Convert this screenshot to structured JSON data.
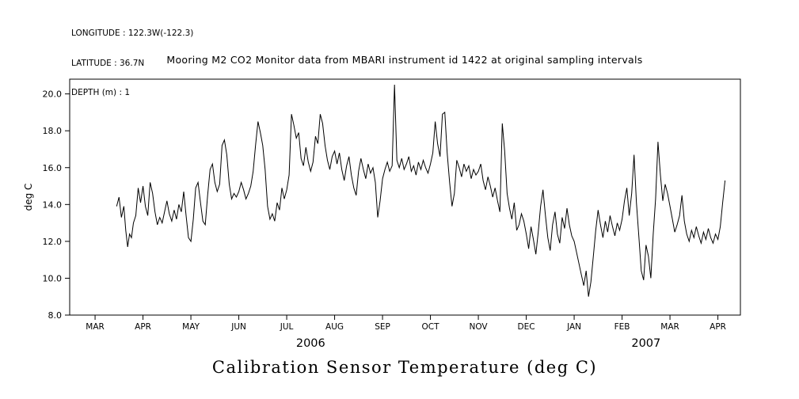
{
  "header": {
    "longitude_label": "LONGITUDE : 122.3W(-122.3)",
    "latitude_label": "LATITUDE : 36.7N",
    "depth_label": "DEPTH (m) : 1"
  },
  "title": "Mooring M2 CO2 Monitor data from MBARI instrument id 1422 at original sampling intervals",
  "footer_title": "Calibration Sensor Temperature (deg C)",
  "chart_data": {
    "type": "line",
    "title": "Mooring M2 CO2 Monitor data from MBARI instrument id 1422 at original sampling intervals",
    "xlabel": "",
    "ylabel": "deg C",
    "units": "deg C",
    "line_color": "#000000",
    "grid": false,
    "legend": "none",
    "ylim": [
      8.0,
      20.8
    ],
    "xlim_months": [
      -0.53,
      13.47
    ],
    "y_ticks": [
      8.0,
      10.0,
      12.0,
      14.0,
      16.0,
      18.0,
      20.0
    ],
    "y_tick_labels": [
      "8.0",
      "10.0",
      "12.0",
      "14.0",
      "16.0",
      "18.0",
      "20.0"
    ],
    "x_tick_labels": [
      "MAR",
      "APR",
      "MAY",
      "JUN",
      "JUL",
      "AUG",
      "SEP",
      "OCT",
      "NOV",
      "DEC",
      "JAN",
      "FEB",
      "MAR",
      "APR"
    ],
    "year_labels": [
      {
        "label": "2006",
        "month_x": 4.5
      },
      {
        "label": "2007",
        "month_x": 11.5
      }
    ],
    "series": [
      {
        "name": "Calibration Sensor Temperature",
        "points": [
          [
            0.45,
            13.9
          ],
          [
            0.5,
            14.4
          ],
          [
            0.55,
            13.3
          ],
          [
            0.6,
            13.9
          ],
          [
            0.64,
            12.6
          ],
          [
            0.68,
            11.7
          ],
          [
            0.72,
            12.4
          ],
          [
            0.76,
            12.2
          ],
          [
            0.8,
            13.0
          ],
          [
            0.85,
            13.4
          ],
          [
            0.9,
            14.9
          ],
          [
            0.95,
            14.1
          ],
          [
            1.0,
            15.0
          ],
          [
            1.05,
            13.9
          ],
          [
            1.1,
            13.4
          ],
          [
            1.15,
            15.2
          ],
          [
            1.2,
            14.6
          ],
          [
            1.25,
            13.6
          ],
          [
            1.3,
            12.9
          ],
          [
            1.35,
            13.3
          ],
          [
            1.4,
            13.0
          ],
          [
            1.45,
            13.6
          ],
          [
            1.5,
            14.2
          ],
          [
            1.55,
            13.5
          ],
          [
            1.6,
            13.1
          ],
          [
            1.65,
            13.7
          ],
          [
            1.7,
            13.2
          ],
          [
            1.75,
            14.0
          ],
          [
            1.8,
            13.6
          ],
          [
            1.85,
            14.7
          ],
          [
            1.9,
            13.4
          ],
          [
            1.95,
            12.2
          ],
          [
            2.0,
            12.0
          ],
          [
            2.05,
            13.2
          ],
          [
            2.1,
            14.9
          ],
          [
            2.15,
            15.2
          ],
          [
            2.2,
            14.1
          ],
          [
            2.25,
            13.1
          ],
          [
            2.3,
            12.9
          ],
          [
            2.35,
            14.5
          ],
          [
            2.4,
            15.9
          ],
          [
            2.45,
            16.2
          ],
          [
            2.5,
            15.2
          ],
          [
            2.55,
            14.7
          ],
          [
            2.6,
            15.1
          ],
          [
            2.65,
            17.2
          ],
          [
            2.7,
            17.5
          ],
          [
            2.75,
            16.7
          ],
          [
            2.8,
            15.1
          ],
          [
            2.85,
            14.3
          ],
          [
            2.9,
            14.6
          ],
          [
            2.95,
            14.4
          ],
          [
            3.0,
            14.7
          ],
          [
            3.05,
            15.2
          ],
          [
            3.1,
            14.8
          ],
          [
            3.15,
            14.3
          ],
          [
            3.2,
            14.6
          ],
          [
            3.25,
            15.0
          ],
          [
            3.3,
            15.8
          ],
          [
            3.35,
            17.2
          ],
          [
            3.4,
            18.5
          ],
          [
            3.45,
            17.9
          ],
          [
            3.5,
            17.2
          ],
          [
            3.55,
            15.9
          ],
          [
            3.6,
            13.9
          ],
          [
            3.65,
            13.2
          ],
          [
            3.7,
            13.5
          ],
          [
            3.75,
            13.1
          ],
          [
            3.8,
            14.1
          ],
          [
            3.85,
            13.7
          ],
          [
            3.9,
            14.9
          ],
          [
            3.95,
            14.3
          ],
          [
            4.0,
            14.8
          ],
          [
            4.05,
            15.6
          ],
          [
            4.1,
            18.9
          ],
          [
            4.15,
            18.3
          ],
          [
            4.2,
            17.6
          ],
          [
            4.25,
            17.9
          ],
          [
            4.3,
            16.5
          ],
          [
            4.35,
            16.1
          ],
          [
            4.4,
            17.1
          ],
          [
            4.45,
            16.3
          ],
          [
            4.5,
            15.8
          ],
          [
            4.55,
            16.3
          ],
          [
            4.6,
            17.7
          ],
          [
            4.65,
            17.3
          ],
          [
            4.7,
            18.9
          ],
          [
            4.75,
            18.4
          ],
          [
            4.8,
            17.2
          ],
          [
            4.85,
            16.4
          ],
          [
            4.9,
            15.9
          ],
          [
            4.95,
            16.6
          ],
          [
            5.0,
            16.9
          ],
          [
            5.05,
            16.2
          ],
          [
            5.1,
            16.8
          ],
          [
            5.15,
            15.9
          ],
          [
            5.2,
            15.3
          ],
          [
            5.25,
            16.1
          ],
          [
            5.3,
            16.6
          ],
          [
            5.35,
            15.6
          ],
          [
            5.4,
            14.9
          ],
          [
            5.45,
            14.5
          ],
          [
            5.5,
            15.8
          ],
          [
            5.55,
            16.5
          ],
          [
            5.6,
            15.9
          ],
          [
            5.65,
            15.4
          ],
          [
            5.7,
            16.2
          ],
          [
            5.75,
            15.7
          ],
          [
            5.8,
            16.0
          ],
          [
            5.85,
            15.2
          ],
          [
            5.9,
            13.3
          ],
          [
            5.95,
            14.2
          ],
          [
            6.0,
            15.4
          ],
          [
            6.05,
            15.9
          ],
          [
            6.1,
            16.3
          ],
          [
            6.15,
            15.8
          ],
          [
            6.2,
            16.1
          ],
          [
            6.25,
            20.5
          ],
          [
            6.3,
            16.4
          ],
          [
            6.35,
            16.0
          ],
          [
            6.4,
            16.5
          ],
          [
            6.45,
            15.9
          ],
          [
            6.5,
            16.2
          ],
          [
            6.55,
            16.6
          ],
          [
            6.6,
            15.8
          ],
          [
            6.65,
            16.1
          ],
          [
            6.7,
            15.6
          ],
          [
            6.75,
            16.3
          ],
          [
            6.8,
            15.9
          ],
          [
            6.85,
            16.4
          ],
          [
            6.9,
            16.0
          ],
          [
            6.95,
            15.7
          ],
          [
            7.0,
            16.2
          ],
          [
            7.05,
            16.8
          ],
          [
            7.1,
            18.5
          ],
          [
            7.15,
            17.3
          ],
          [
            7.2,
            16.6
          ],
          [
            7.25,
            18.9
          ],
          [
            7.3,
            19.0
          ],
          [
            7.35,
            16.8
          ],
          [
            7.4,
            15.2
          ],
          [
            7.45,
            13.9
          ],
          [
            7.5,
            14.6
          ],
          [
            7.55,
            16.4
          ],
          [
            7.6,
            16.0
          ],
          [
            7.65,
            15.5
          ],
          [
            7.7,
            16.2
          ],
          [
            7.75,
            15.8
          ],
          [
            7.8,
            16.1
          ],
          [
            7.85,
            15.4
          ],
          [
            7.9,
            15.9
          ],
          [
            7.95,
            15.6
          ],
          [
            8.0,
            15.8
          ],
          [
            8.05,
            16.2
          ],
          [
            8.1,
            15.3
          ],
          [
            8.15,
            14.8
          ],
          [
            8.2,
            15.5
          ],
          [
            8.25,
            15.0
          ],
          [
            8.3,
            14.4
          ],
          [
            8.35,
            14.9
          ],
          [
            8.4,
            14.2
          ],
          [
            8.45,
            13.6
          ],
          [
            8.5,
            18.4
          ],
          [
            8.55,
            16.9
          ],
          [
            8.6,
            14.6
          ],
          [
            8.65,
            13.8
          ],
          [
            8.7,
            13.2
          ],
          [
            8.75,
            14.1
          ],
          [
            8.8,
            12.6
          ],
          [
            8.85,
            12.9
          ],
          [
            8.9,
            13.5
          ],
          [
            8.95,
            13.1
          ],
          [
            9.0,
            12.4
          ],
          [
            9.05,
            11.6
          ],
          [
            9.1,
            12.8
          ],
          [
            9.15,
            12.1
          ],
          [
            9.2,
            11.3
          ],
          [
            9.25,
            12.5
          ],
          [
            9.3,
            13.9
          ],
          [
            9.35,
            14.8
          ],
          [
            9.4,
            13.4
          ],
          [
            9.45,
            12.2
          ],
          [
            9.5,
            11.5
          ],
          [
            9.55,
            12.9
          ],
          [
            9.6,
            13.6
          ],
          [
            9.65,
            12.4
          ],
          [
            9.7,
            11.9
          ],
          [
            9.75,
            13.3
          ],
          [
            9.8,
            12.7
          ],
          [
            9.85,
            13.8
          ],
          [
            9.9,
            12.9
          ],
          [
            9.95,
            12.3
          ],
          [
            10.0,
            12.0
          ],
          [
            10.05,
            11.4
          ],
          [
            10.1,
            10.8
          ],
          [
            10.15,
            10.2
          ],
          [
            10.2,
            9.6
          ],
          [
            10.25,
            10.4
          ],
          [
            10.3,
            9.0
          ],
          [
            10.35,
            9.8
          ],
          [
            10.4,
            11.2
          ],
          [
            10.45,
            12.6
          ],
          [
            10.5,
            13.7
          ],
          [
            10.55,
            12.9
          ],
          [
            10.6,
            12.2
          ],
          [
            10.65,
            13.1
          ],
          [
            10.7,
            12.5
          ],
          [
            10.75,
            13.4
          ],
          [
            10.8,
            12.8
          ],
          [
            10.85,
            12.3
          ],
          [
            10.9,
            13.0
          ],
          [
            10.95,
            12.6
          ],
          [
            11.0,
            13.2
          ],
          [
            11.05,
            14.2
          ],
          [
            11.1,
            14.9
          ],
          [
            11.15,
            13.4
          ],
          [
            11.2,
            14.6
          ],
          [
            11.25,
            16.7
          ],
          [
            11.3,
            14.1
          ],
          [
            11.35,
            12.3
          ],
          [
            11.4,
            10.4
          ],
          [
            11.45,
            9.9
          ],
          [
            11.5,
            11.8
          ],
          [
            11.55,
            11.2
          ],
          [
            11.6,
            10.0
          ],
          [
            11.65,
            12.4
          ],
          [
            11.7,
            14.3
          ],
          [
            11.75,
            17.4
          ],
          [
            11.8,
            15.6
          ],
          [
            11.85,
            14.2
          ],
          [
            11.9,
            15.1
          ],
          [
            11.95,
            14.6
          ],
          [
            12.0,
            13.9
          ],
          [
            12.05,
            13.2
          ],
          [
            12.1,
            12.5
          ],
          [
            12.15,
            12.9
          ],
          [
            12.2,
            13.4
          ],
          [
            12.25,
            14.5
          ],
          [
            12.3,
            13.1
          ],
          [
            12.35,
            12.4
          ],
          [
            12.4,
            12.0
          ],
          [
            12.45,
            12.6
          ],
          [
            12.5,
            12.2
          ],
          [
            12.55,
            12.8
          ],
          [
            12.6,
            12.3
          ],
          [
            12.65,
            11.9
          ],
          [
            12.7,
            12.5
          ],
          [
            12.75,
            12.1
          ],
          [
            12.8,
            12.7
          ],
          [
            12.85,
            12.2
          ],
          [
            12.9,
            11.9
          ],
          [
            12.95,
            12.4
          ],
          [
            13.0,
            12.1
          ],
          [
            13.05,
            12.8
          ],
          [
            13.1,
            14.1
          ],
          [
            13.15,
            15.3
          ]
        ]
      }
    ]
  }
}
